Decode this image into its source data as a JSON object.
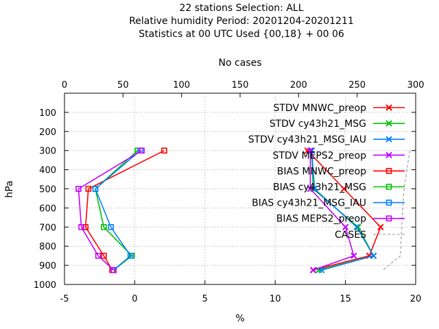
{
  "chart_data": {
    "type": "line",
    "title_lines": [
      "22 stations Selection: ALL",
      "Relative humidity  Period: 20201204-20201211",
      "Statistics at 00 UTC  Used {00,18} + 00 06"
    ],
    "xlabel": "%",
    "x2label": "No cases",
    "ylabel": "hPa",
    "xlim": [
      -5,
      20
    ],
    "x2lim": [
      0,
      300
    ],
    "ylim": [
      1000,
      0
    ],
    "y_reversed": true,
    "x_ticks": [
      -5,
      0,
      5,
      10,
      15,
      20
    ],
    "x2_ticks": [
      0,
      50,
      100,
      150,
      200,
      250,
      300
    ],
    "y_ticks": [
      100,
      200,
      300,
      400,
      500,
      600,
      700,
      800,
      900,
      1000
    ],
    "grid": true,
    "legend_position": "top-right",
    "levels": [
      300,
      500,
      700,
      850,
      925
    ],
    "series": [
      {
        "name": "STDV MNWC_preop",
        "color": "#ff0000",
        "marker": "x",
        "values": [
          12.3,
          14.9,
          17.5,
          16.7,
          12.7
        ]
      },
      {
        "name": "STDV cy43h21_MSG",
        "color": "#00c000",
        "marker": "x",
        "values": [
          12.6,
          12.7,
          15.9,
          17.0,
          13.1
        ]
      },
      {
        "name": "STDV cy43h21_MSG_IAU",
        "color": "#0080ff",
        "marker": "x",
        "values": [
          12.6,
          12.8,
          15.8,
          17.0,
          13.3
        ]
      },
      {
        "name": "STDV MEPS2_preop",
        "color": "#c000ff",
        "marker": "x",
        "values": [
          12.5,
          12.5,
          15.0,
          15.6,
          12.7
        ]
      },
      {
        "name": "BIAS MNWC_preop",
        "color": "#ff0000",
        "marker": "square",
        "values": [
          2.1,
          -3.3,
          -3.5,
          -2.2,
          -1.6
        ]
      },
      {
        "name": "BIAS cy43h21_MSG",
        "color": "#00c000",
        "marker": "square",
        "values": [
          0.2,
          -2.8,
          -2.2,
          -0.2,
          -1.5
        ]
      },
      {
        "name": "BIAS cy43h21_MSG_IAU",
        "color": "#0080ff",
        "marker": "square",
        "values": [
          0.4,
          -2.8,
          -1.7,
          -0.3,
          -1.5
        ]
      },
      {
        "name": "BIAS MEPS2_preop",
        "color": "#c000ff",
        "marker": "square",
        "values": [
          0.5,
          -4.0,
          -3.8,
          -2.6,
          -1.5
        ]
      }
    ],
    "cases": {
      "name": "CASES",
      "color": "#a0a0a0",
      "dash": "dashed",
      "levels": [
        300,
        500,
        700,
        850,
        925
      ],
      "values": [
        295,
        290,
        288,
        287,
        272
      ]
    }
  }
}
